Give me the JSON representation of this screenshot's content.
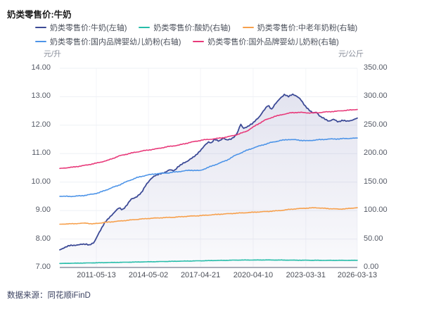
{
  "title": "奶类零售价:牛奶",
  "footer": {
    "source_label": "数据来源：同花顺iFinD"
  },
  "chart_data": {
    "type": "line",
    "title": "奶类零售价:牛奶",
    "legend_position": "top",
    "grid": true,
    "x_ticks": [
      {
        "label": "2011-05-13",
        "f": 0.123
      },
      {
        "label": "2014-05-02",
        "f": 0.298
      },
      {
        "label": "2017-04-21",
        "f": 0.473
      },
      {
        "label": "2020-04-10",
        "f": 0.65
      },
      {
        "label": "2023-03-31",
        "f": 0.827
      },
      {
        "label": "2026-03-13",
        "f": 1.0
      }
    ],
    "left_axis": {
      "unit": "元/升",
      "min": 7,
      "max": 14,
      "ticks": [
        14,
        13,
        12,
        11,
        10,
        9,
        8,
        7
      ]
    },
    "right_axis": {
      "unit": "元/公斤",
      "min": 0,
      "max": 350,
      "ticks": [
        350,
        300,
        250,
        200,
        150,
        100,
        50,
        0
      ]
    },
    "legend_rows": [
      [
        "milk-left",
        "yogurt-right",
        "middle-aged-powder-right"
      ],
      [
        "domestic-infant-formula-right",
        "foreign-infant-formula-right"
      ]
    ],
    "series": [
      {
        "key": "milk-left",
        "name": "奶类零售价:牛奶(左轴)",
        "axis": "left",
        "color": "#3c4a96",
        "fill": true,
        "jitter": 1.0,
        "points": [
          [
            0,
            7.62
          ],
          [
            0.02,
            7.72
          ],
          [
            0.04,
            7.78
          ],
          [
            0.07,
            7.8
          ],
          [
            0.09,
            7.83
          ],
          [
            0.1,
            7.79
          ],
          [
            0.115,
            7.86
          ],
          [
            0.13,
            8.2
          ],
          [
            0.15,
            8.55
          ],
          [
            0.17,
            8.8
          ],
          [
            0.185,
            8.95
          ],
          [
            0.2,
            9.1
          ],
          [
            0.21,
            9.03
          ],
          [
            0.225,
            9.18
          ],
          [
            0.24,
            9.4
          ],
          [
            0.26,
            9.5
          ],
          [
            0.275,
            9.62
          ],
          [
            0.29,
            9.92
          ],
          [
            0.305,
            10.1
          ],
          [
            0.32,
            10.22
          ],
          [
            0.335,
            10.3
          ],
          [
            0.355,
            10.33
          ],
          [
            0.37,
            10.45
          ],
          [
            0.385,
            10.4
          ],
          [
            0.4,
            10.55
          ],
          [
            0.415,
            10.68
          ],
          [
            0.43,
            10.73
          ],
          [
            0.445,
            10.85
          ],
          [
            0.46,
            10.98
          ],
          [
            0.475,
            11.12
          ],
          [
            0.49,
            11.33
          ],
          [
            0.5,
            11.42
          ],
          [
            0.51,
            11.37
          ],
          [
            0.52,
            11.5
          ],
          [
            0.535,
            11.45
          ],
          [
            0.55,
            11.55
          ],
          [
            0.56,
            11.47
          ],
          [
            0.575,
            11.52
          ],
          [
            0.59,
            11.62
          ],
          [
            0.6,
            11.78
          ],
          [
            0.607,
            12.05
          ],
          [
            0.617,
            11.9
          ],
          [
            0.632,
            11.95
          ],
          [
            0.647,
            12.05
          ],
          [
            0.66,
            12.2
          ],
          [
            0.672,
            12.3
          ],
          [
            0.685,
            12.5
          ],
          [
            0.7,
            12.72
          ],
          [
            0.712,
            12.55
          ],
          [
            0.725,
            12.75
          ],
          [
            0.74,
            12.95
          ],
          [
            0.755,
            13.07
          ],
          [
            0.768,
            13.0
          ],
          [
            0.782,
            13.1
          ],
          [
            0.795,
            13.02
          ],
          [
            0.81,
            12.9
          ],
          [
            0.825,
            12.68
          ],
          [
            0.84,
            12.5
          ],
          [
            0.852,
            12.42
          ],
          [
            0.862,
            12.48
          ],
          [
            0.875,
            12.3
          ],
          [
            0.89,
            12.22
          ],
          [
            0.905,
            12.15
          ],
          [
            0.92,
            12.2
          ],
          [
            0.935,
            12.12
          ],
          [
            0.95,
            12.18
          ],
          [
            0.965,
            12.13
          ],
          [
            0.98,
            12.17
          ],
          [
            1.0,
            12.25
          ]
        ]
      },
      {
        "key": "yogurt-right",
        "name": "奶类零售价:酸奶(右轴)",
        "axis": "right",
        "color": "#27bda9",
        "fill": false,
        "jitter": 0.25,
        "points": [
          [
            0,
            7
          ],
          [
            0.1,
            8
          ],
          [
            0.2,
            9
          ],
          [
            0.3,
            10
          ],
          [
            0.4,
            11
          ],
          [
            0.5,
            12
          ],
          [
            0.6,
            13
          ],
          [
            0.7,
            13.2
          ],
          [
            0.8,
            12.8
          ],
          [
            0.9,
            12.5
          ],
          [
            1,
            12.6
          ]
        ]
      },
      {
        "key": "middle-aged-powder-right",
        "name": "奶类零售价:中老年奶粉(右轴)",
        "axis": "right",
        "color": "#f7a04c",
        "fill": false,
        "jitter": 0.5,
        "points": [
          [
            0,
            76
          ],
          [
            0.05,
            77
          ],
          [
            0.09,
            78
          ],
          [
            0.11,
            76.5
          ],
          [
            0.15,
            79
          ],
          [
            0.19,
            81
          ],
          [
            0.23,
            83
          ],
          [
            0.27,
            85
          ],
          [
            0.31,
            86.5
          ],
          [
            0.35,
            87.5
          ],
          [
            0.39,
            88.5
          ],
          [
            0.43,
            90
          ],
          [
            0.47,
            91
          ],
          [
            0.51,
            92.5
          ],
          [
            0.55,
            94
          ],
          [
            0.6,
            95.5
          ],
          [
            0.65,
            97
          ],
          [
            0.7,
            98.5
          ],
          [
            0.74,
            100
          ],
          [
            0.78,
            102.5
          ],
          [
            0.82,
            104
          ],
          [
            0.86,
            105
          ],
          [
            0.9,
            103.5
          ],
          [
            0.94,
            102.5
          ],
          [
            0.97,
            103.5
          ],
          [
            1,
            105
          ]
        ]
      },
      {
        "key": "domestic-infant-formula-right",
        "name": "奶类零售价:国内品牌婴幼儿奶粉(右轴)",
        "axis": "right",
        "color": "#4d94e8",
        "fill": false,
        "jitter": 0.7,
        "points": [
          [
            0,
            125
          ],
          [
            0.05,
            125
          ],
          [
            0.09,
            127
          ],
          [
            0.13,
            131
          ],
          [
            0.17,
            139
          ],
          [
            0.2,
            145
          ],
          [
            0.23,
            152
          ],
          [
            0.26,
            158
          ],
          [
            0.29,
            162
          ],
          [
            0.32,
            164.5
          ],
          [
            0.36,
            166
          ],
          [
            0.4,
            168.5
          ],
          [
            0.44,
            171
          ],
          [
            0.47,
            170
          ],
          [
            0.5,
            176
          ],
          [
            0.53,
            182
          ],
          [
            0.56,
            188
          ],
          [
            0.59,
            197
          ],
          [
            0.62,
            204
          ],
          [
            0.65,
            210
          ],
          [
            0.68,
            215
          ],
          [
            0.71,
            219.5
          ],
          [
            0.74,
            223
          ],
          [
            0.77,
            225
          ],
          [
            0.8,
            224
          ],
          [
            0.83,
            222.5
          ],
          [
            0.86,
            224
          ],
          [
            0.9,
            225.5
          ],
          [
            0.94,
            226
          ],
          [
            1,
            227.5
          ]
        ]
      },
      {
        "key": "foreign-infant-formula-right",
        "name": "奶类零售价:国外品牌婴幼儿奶粉(右轴)",
        "axis": "right",
        "color": "#e83a7a",
        "fill": false,
        "jitter": 0.6,
        "points": [
          [
            0,
            174
          ],
          [
            0.04,
            176
          ],
          [
            0.08,
            179
          ],
          [
            0.12,
            183
          ],
          [
            0.16,
            188
          ],
          [
            0.2,
            196
          ],
          [
            0.24,
            201
          ],
          [
            0.28,
            205
          ],
          [
            0.32,
            208
          ],
          [
            0.36,
            212
          ],
          [
            0.4,
            215
          ],
          [
            0.44,
            220
          ],
          [
            0.48,
            224
          ],
          [
            0.52,
            226
          ],
          [
            0.56,
            229
          ],
          [
            0.6,
            234
          ],
          [
            0.63,
            240
          ],
          [
            0.66,
            250
          ],
          [
            0.69,
            259
          ],
          [
            0.72,
            265
          ],
          [
            0.75,
            269
          ],
          [
            0.78,
            272
          ],
          [
            0.81,
            272.5
          ],
          [
            0.84,
            271.5
          ],
          [
            0.87,
            272
          ],
          [
            0.9,
            273.5
          ],
          [
            0.93,
            274.5
          ],
          [
            0.96,
            276
          ],
          [
            1,
            277.5
          ]
        ]
      }
    ],
    "colors": {
      "grid": "#eef0f5",
      "vgrid": "#f3f4f8",
      "axis_line": "#a9aeb8",
      "fill_top": "#50549f"
    }
  }
}
